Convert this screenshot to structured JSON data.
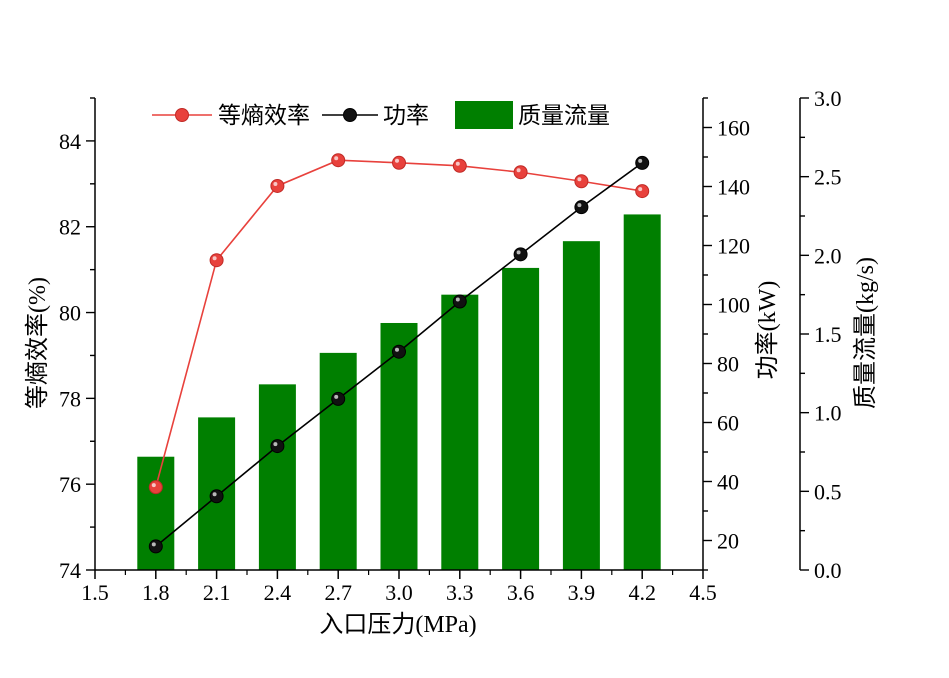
{
  "chart_data": {
    "type": "bar",
    "xlabel": "入口压力(MPa)",
    "x_ticks": [
      "1.5",
      "1.8",
      "2.1",
      "2.4",
      "2.7",
      "3.0",
      "3.3",
      "3.6",
      "3.9",
      "4.2",
      "4.5"
    ],
    "xlim": [
      1.5,
      4.5
    ],
    "axes": {
      "left": {
        "label": "等熵效率(%)",
        "ylim": [
          74,
          85
        ],
        "ticks": [
          "74",
          "76",
          "78",
          "80",
          "82",
          "84"
        ]
      },
      "right1": {
        "label": "功率(kW)",
        "ylim": [
          10,
          170
        ],
        "ticks": [
          "20",
          "40",
          "60",
          "80",
          "100",
          "120",
          "140",
          "160"
        ]
      },
      "right2": {
        "label": "质量流量(kg/s)",
        "ylim": [
          0.0,
          3.0
        ],
        "ticks": [
          "0.0",
          "0.5",
          "1.0",
          "1.5",
          "2.0",
          "2.5",
          "3.0"
        ]
      }
    },
    "legend_position": "top",
    "series": [
      {
        "name": "等熵效率",
        "kind": "line",
        "axis": "left",
        "color": "#e8413c",
        "x": [
          1.8,
          2.1,
          2.4,
          2.7,
          3.0,
          3.3,
          3.6,
          3.9,
          4.2
        ],
        "values": [
          75.93,
          81.22,
          82.95,
          83.55,
          83.49,
          83.42,
          83.27,
          83.06,
          82.83
        ]
      },
      {
        "name": "功率",
        "kind": "line",
        "axis": "right1",
        "color": "#000000",
        "x": [
          1.8,
          2.1,
          2.4,
          2.7,
          3.0,
          3.3,
          3.6,
          3.9,
          4.2
        ],
        "values": [
          18,
          35,
          52,
          68,
          84,
          101,
          117,
          133,
          148
        ]
      },
      {
        "name": "质量流量",
        "kind": "bar",
        "axis": "right2",
        "color": "#007f00",
        "x": [
          1.8,
          2.1,
          2.4,
          2.7,
          3.0,
          3.3,
          3.6,
          3.9,
          4.2
        ],
        "values": [
          0.72,
          0.97,
          1.18,
          1.38,
          1.57,
          1.75,
          1.92,
          2.09,
          2.26
        ]
      }
    ]
  }
}
